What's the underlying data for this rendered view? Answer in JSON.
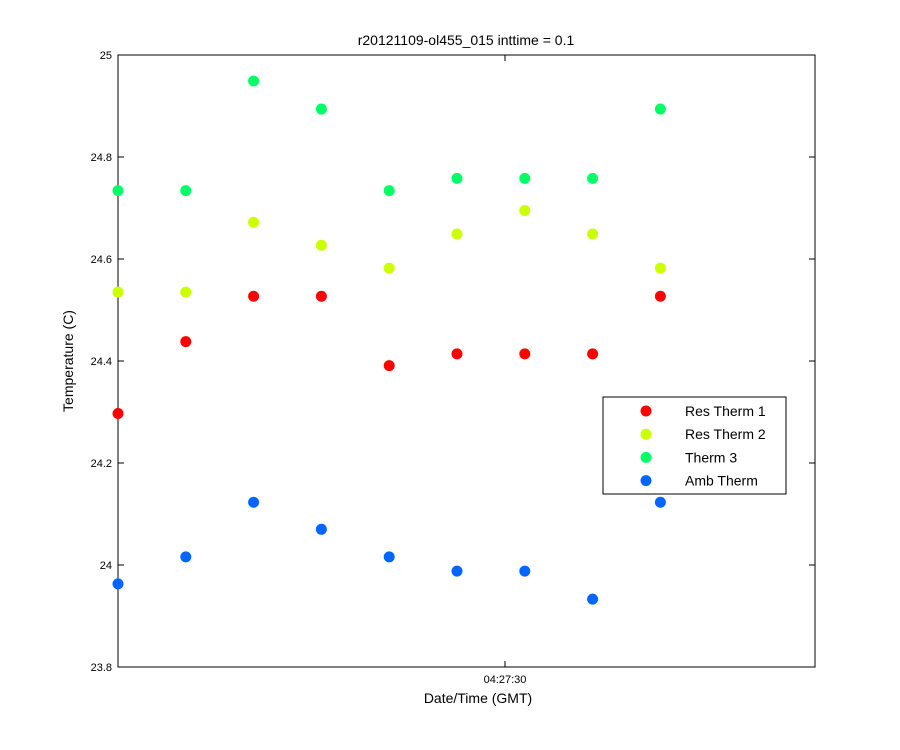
{
  "chart_data": {
    "type": "scatter",
    "title": "r20121109-ol455_015 inttime = 0.1",
    "xlabel": "Date/Time (GMT)",
    "ylabel": "Temperature (C)",
    "x_ticks": [
      "04:27:30"
    ],
    "y_ticks": [
      "23.8",
      "24",
      "24.2",
      "24.4",
      "24.6",
      "24.8",
      "25"
    ],
    "ylim": [
      23.8,
      25.0
    ],
    "grid": false,
    "legend_position": "right",
    "x": [
      0,
      1,
      2,
      3,
      4,
      5,
      6,
      7,
      8
    ],
    "series": [
      {
        "name": "Res Therm 1",
        "color": "#ff0000",
        "values": [
          24.297,
          24.438,
          24.527,
          24.527,
          24.391,
          24.414,
          24.414,
          24.414,
          24.527
        ]
      },
      {
        "name": "Res Therm 2",
        "color": "#ccff00",
        "values": [
          24.535,
          24.535,
          24.672,
          24.627,
          24.582,
          24.649,
          24.695,
          24.649,
          24.582
        ]
      },
      {
        "name": "Therm 3",
        "color": "#00ff66",
        "values": [
          24.734,
          24.734,
          24.949,
          24.894,
          24.734,
          24.758,
          24.758,
          24.758,
          24.894
        ]
      },
      {
        "name": "Amb Therm",
        "color": "#0066ff",
        "values": [
          23.963,
          24.016,
          24.123,
          24.07,
          24.016,
          23.988,
          23.988,
          23.933,
          24.123
        ]
      }
    ]
  }
}
